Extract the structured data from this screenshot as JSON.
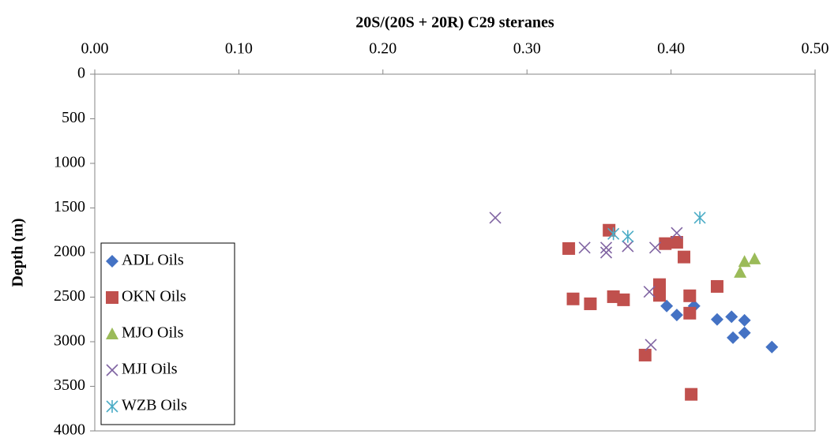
{
  "chart_data": {
    "type": "scatter",
    "title": "20S/(20S + 20R) C29 steranes",
    "y_label": "Depth (m)",
    "x_axis_position": "top",
    "y_inverted": true,
    "grid": false,
    "legend_position": "lower left",
    "xlim": [
      0,
      0.5
    ],
    "xticks": [
      {
        "value": 0,
        "label": "0.00"
      },
      {
        "value": 0.1,
        "label": "0.10"
      },
      {
        "value": 0.2,
        "label": "0.20"
      },
      {
        "value": 0.3,
        "label": "0.30"
      },
      {
        "value": 0.4,
        "label": "0.40"
      },
      {
        "value": 0.5,
        "label": "0.50"
      }
    ],
    "ylim": [
      0,
      4000
    ],
    "yticks": [
      0,
      500,
      1000,
      1500,
      2000,
      2500,
      3000,
      3500,
      4000
    ],
    "series": [
      {
        "name": "ADL Oils",
        "color": "#4472c4",
        "marker": "diamond",
        "x": [
          0.397,
          0.404,
          0.416,
          0.432,
          0.442,
          0.443,
          0.451,
          0.451,
          0.47
        ],
        "values": [
          2600,
          2700,
          2600,
          2750,
          2720,
          2955,
          2760,
          2900,
          3060
        ]
      },
      {
        "name": "OKN Oils",
        "color": "#c0504d",
        "marker": "square",
        "x": [
          0.357,
          0.329,
          0.332,
          0.344,
          0.36,
          0.367,
          0.392,
          0.392,
          0.396,
          0.404,
          0.409,
          0.413,
          0.413,
          0.432,
          0.382,
          0.414
        ],
        "values": [
          1750,
          1955,
          2520,
          2575,
          2495,
          2530,
          2360,
          2480,
          1900,
          1885,
          2050,
          2485,
          2680,
          2380,
          3150,
          3590
        ]
      },
      {
        "name": "MJO Oils",
        "color": "#9bbb59",
        "marker": "triangle",
        "x": [
          0.448,
          0.451,
          0.458
        ],
        "values": [
          2220,
          2100,
          2070
        ]
      },
      {
        "name": "MJI Oils",
        "color": "#8064a2",
        "marker": "x",
        "x": [
          0.278,
          0.34,
          0.355,
          0.355,
          0.37,
          0.389,
          0.404,
          0.385,
          0.386
        ],
        "values": [
          1610,
          1945,
          1945,
          2000,
          1930,
          1945,
          1780,
          2440,
          3035
        ]
      },
      {
        "name": "WZB Oils",
        "color": "#4bacc6",
        "marker": "asterisk",
        "x": [
          0.36,
          0.37,
          0.42
        ],
        "values": [
          1790,
          1820,
          1610
        ]
      }
    ]
  }
}
